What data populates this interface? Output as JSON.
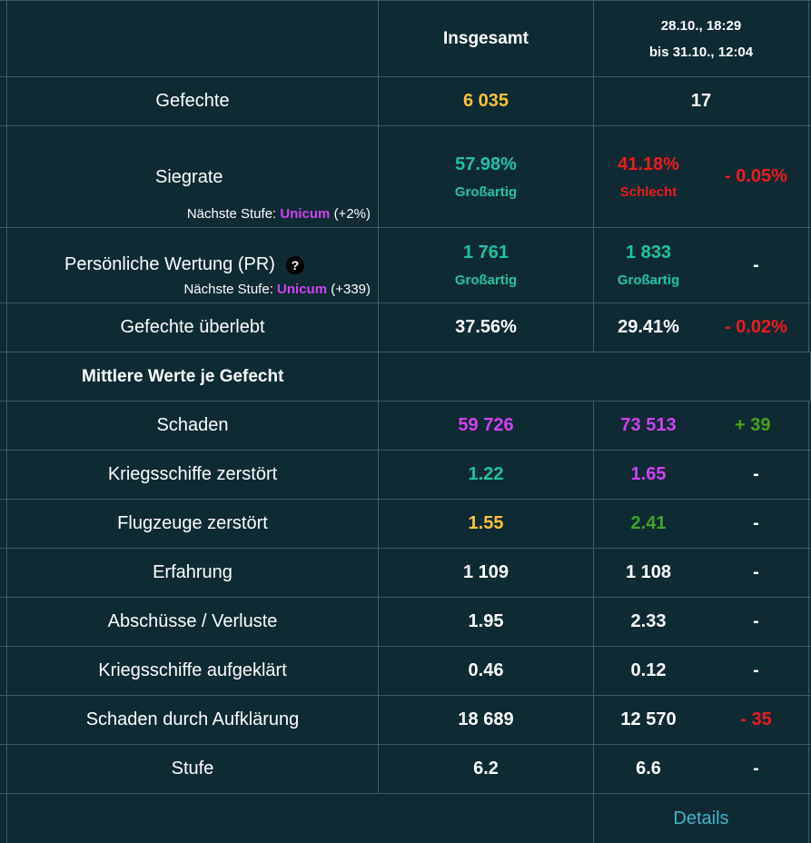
{
  "header": {
    "col_total": "Insgesamt",
    "period_line1": "28.10., 18:29",
    "period_line2": "bis 31.10., 12:04"
  },
  "battles": {
    "label": "Gefechte",
    "total": "6 035",
    "period": "17"
  },
  "winrate": {
    "label": "Siegrate",
    "total": "57.98%",
    "total_rating": "Großartig",
    "period": "41.18%",
    "period_rating": "Schlecht",
    "delta": "- 0.05%",
    "next_prefix": "Nächste Stufe:",
    "next_level": "Unicum",
    "next_suffix": "(+2%)"
  },
  "pr": {
    "label": "Persönliche Wertung (PR)",
    "help_icon": "?",
    "total": "1 761",
    "total_rating": "Großartig",
    "period": "1 833",
    "period_rating": "Großartig",
    "delta": "-",
    "next_prefix": "Nächste Stufe:",
    "next_level": "Unicum",
    "next_suffix": "(+339)"
  },
  "survived": {
    "label": "Gefechte überlebt",
    "total": "37.56%",
    "period": "29.41%",
    "delta": "- 0.02%"
  },
  "section": {
    "title": "Mittlere Werte je Gefecht"
  },
  "rows": [
    {
      "label": "Schaden",
      "total": "59 726",
      "period": "73 513",
      "delta": "+ 39"
    },
    {
      "label": "Kriegsschiffe zerstört",
      "total": "1.22",
      "period": "1.65",
      "delta": "-"
    },
    {
      "label": "Flugzeuge zerstört",
      "total": "1.55",
      "period": "2.41",
      "delta": "-"
    },
    {
      "label": "Erfahrung",
      "total": "1 109",
      "period": "1 108",
      "delta": "-"
    },
    {
      "label": "Abschüsse / Verluste",
      "total": "1.95",
      "period": "2.33",
      "delta": "-"
    },
    {
      "label": "Kriegsschiffe aufgeklärt",
      "total": "0.46",
      "period": "0.12",
      "delta": "-"
    },
    {
      "label": "Schaden durch Aufklärung",
      "total": "18 689",
      "period": "12 570",
      "delta": "- 35"
    },
    {
      "label": "Stufe",
      "total": "6.2",
      "period": "6.6",
      "delta": "-"
    }
  ],
  "footer": {
    "details_link": "Details"
  },
  "colors": {
    "background": "#0e2a33",
    "great": "#1bc3a6",
    "bad": "#ed1c1c",
    "unicum": "#d042f3",
    "good": "#fdc338",
    "very_good": "#49a31a",
    "link": "#3cb6c9"
  }
}
